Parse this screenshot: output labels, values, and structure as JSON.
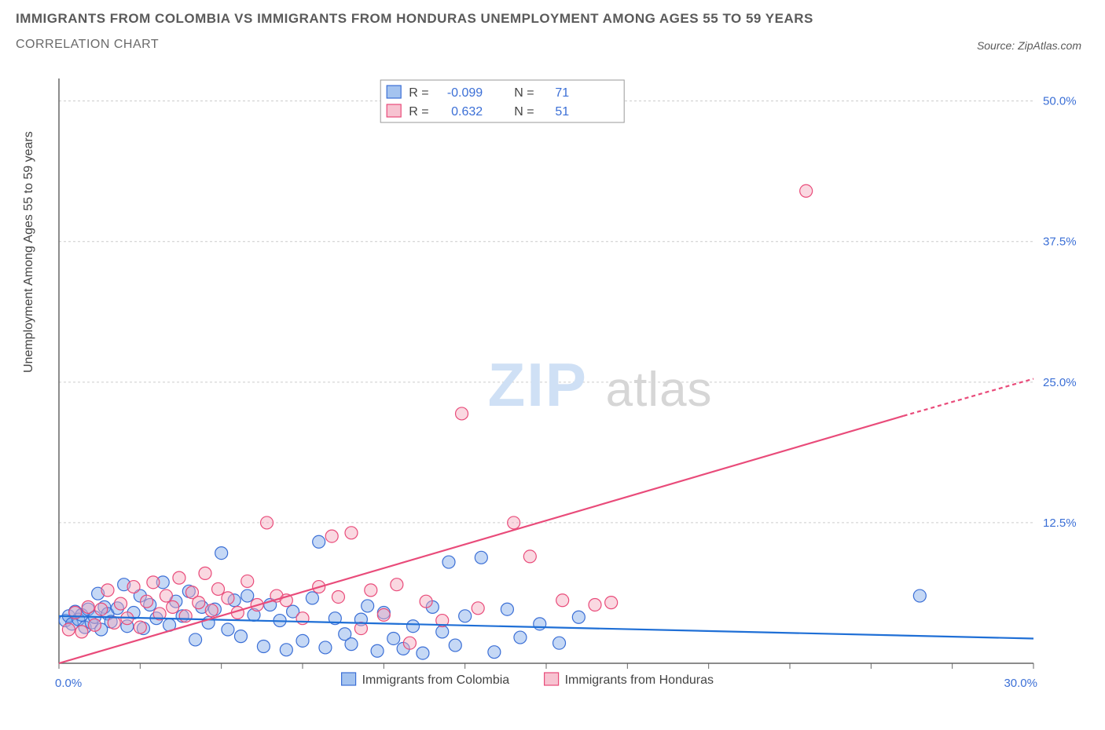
{
  "header": {
    "title_line1": "IMMIGRANTS FROM COLOMBIA VS IMMIGRANTS FROM HONDURAS UNEMPLOYMENT AMONG AGES 55 TO 59 YEARS",
    "title_line2": "CORRELATION CHART",
    "source": "Source: ZipAtlas.com"
  },
  "watermark": {
    "zip": "ZIP",
    "atlas": "atlas"
  },
  "chart": {
    "type": "scatter-correlation",
    "background_color": "#ffffff",
    "grid_color": "#cccccc",
    "axis_color": "#666666",
    "label_color": "#3b6fd6",
    "y_axis_title": "Unemployment Among Ages 55 to 59 years",
    "xlim": [
      0,
      30
    ],
    "ylim": [
      0,
      52
    ],
    "x_tick_start": 0.0,
    "x_tick_end_label": "30.0%",
    "x_tick_start_label": "0.0%",
    "y_ticks": [
      12.5,
      25.0,
      37.5,
      50.0
    ],
    "y_tick_labels": [
      "12.5%",
      "25.0%",
      "37.5%",
      "50.0%"
    ],
    "x_minor_tick_step": 2.5,
    "marker_radius": 8,
    "marker_stroke_width": 1.2,
    "series": [
      {
        "name": "Immigrants from Colombia",
        "fill": "#7ea9e8",
        "fill_opacity": 0.45,
        "stroke": "#3b6fd6",
        "r_value": "-0.099",
        "n_value": "71",
        "trend": {
          "x1": 0,
          "y1": 4.2,
          "x2": 30,
          "y2": 2.2,
          "color": "#1f6fd6",
          "width": 2.2
        },
        "points": [
          [
            0.2,
            3.8
          ],
          [
            0.3,
            4.2
          ],
          [
            0.4,
            3.5
          ],
          [
            0.5,
            4.6
          ],
          [
            0.6,
            3.9
          ],
          [
            0.7,
            4.3
          ],
          [
            0.8,
            3.2
          ],
          [
            0.9,
            4.8
          ],
          [
            1.0,
            3.6
          ],
          [
            1.1,
            4.1
          ],
          [
            1.2,
            6.2
          ],
          [
            1.3,
            3.0
          ],
          [
            1.4,
            5.0
          ],
          [
            1.5,
            4.4
          ],
          [
            1.6,
            3.7
          ],
          [
            1.8,
            4.9
          ],
          [
            2.0,
            7.0
          ],
          [
            2.1,
            3.3
          ],
          [
            2.3,
            4.5
          ],
          [
            2.5,
            6.0
          ],
          [
            2.6,
            3.1
          ],
          [
            2.8,
            5.2
          ],
          [
            3.0,
            4.0
          ],
          [
            3.2,
            7.2
          ],
          [
            3.4,
            3.4
          ],
          [
            3.6,
            5.5
          ],
          [
            3.8,
            4.2
          ],
          [
            4.0,
            6.4
          ],
          [
            4.2,
            2.1
          ],
          [
            4.4,
            5.0
          ],
          [
            4.6,
            3.6
          ],
          [
            4.8,
            4.8
          ],
          [
            5.0,
            9.8
          ],
          [
            5.2,
            3.0
          ],
          [
            5.4,
            5.6
          ],
          [
            5.6,
            2.4
          ],
          [
            5.8,
            6.0
          ],
          [
            6.0,
            4.3
          ],
          [
            6.3,
            1.5
          ],
          [
            6.5,
            5.2
          ],
          [
            6.8,
            3.8
          ],
          [
            7.0,
            1.2
          ],
          [
            7.2,
            4.6
          ],
          [
            7.5,
            2.0
          ],
          [
            7.8,
            5.8
          ],
          [
            8.0,
            10.8
          ],
          [
            8.2,
            1.4
          ],
          [
            8.5,
            4.0
          ],
          [
            8.8,
            2.6
          ],
          [
            9.0,
            1.7
          ],
          [
            9.3,
            3.9
          ],
          [
            9.5,
            5.1
          ],
          [
            9.8,
            1.1
          ],
          [
            10.0,
            4.5
          ],
          [
            10.3,
            2.2
          ],
          [
            10.6,
            1.3
          ],
          [
            10.9,
            3.3
          ],
          [
            11.2,
            0.9
          ],
          [
            11.5,
            5.0
          ],
          [
            11.8,
            2.8
          ],
          [
            12.0,
            9.0
          ],
          [
            12.2,
            1.6
          ],
          [
            12.5,
            4.2
          ],
          [
            13.0,
            9.4
          ],
          [
            13.4,
            1.0
          ],
          [
            13.8,
            4.8
          ],
          [
            14.2,
            2.3
          ],
          [
            14.8,
            3.5
          ],
          [
            15.4,
            1.8
          ],
          [
            16.0,
            4.1
          ],
          [
            26.5,
            6.0
          ]
        ]
      },
      {
        "name": "Immigrants from Honduras",
        "fill": "#f3a9bd",
        "fill_opacity": 0.45,
        "stroke": "#e94b7a",
        "r_value": "0.632",
        "n_value": "51",
        "trend": {
          "x1": 0,
          "y1": 0.0,
          "x2": 26,
          "y2": 22.0,
          "x3": 30,
          "y3": 25.3,
          "color": "#e94b7a",
          "width": 2.2
        },
        "points": [
          [
            0.3,
            3.0
          ],
          [
            0.5,
            4.5
          ],
          [
            0.7,
            2.8
          ],
          [
            0.9,
            5.0
          ],
          [
            1.1,
            3.4
          ],
          [
            1.3,
            4.8
          ],
          [
            1.5,
            6.5
          ],
          [
            1.7,
            3.6
          ],
          [
            1.9,
            5.3
          ],
          [
            2.1,
            4.0
          ],
          [
            2.3,
            6.8
          ],
          [
            2.5,
            3.2
          ],
          [
            2.7,
            5.5
          ],
          [
            2.9,
            7.2
          ],
          [
            3.1,
            4.4
          ],
          [
            3.3,
            6.0
          ],
          [
            3.5,
            5.0
          ],
          [
            3.7,
            7.6
          ],
          [
            3.9,
            4.2
          ],
          [
            4.1,
            6.3
          ],
          [
            4.3,
            5.4
          ],
          [
            4.5,
            8.0
          ],
          [
            4.7,
            4.7
          ],
          [
            4.9,
            6.6
          ],
          [
            5.2,
            5.8
          ],
          [
            5.5,
            4.5
          ],
          [
            5.8,
            7.3
          ],
          [
            6.1,
            5.2
          ],
          [
            6.4,
            12.5
          ],
          [
            6.7,
            6.0
          ],
          [
            7.0,
            5.6
          ],
          [
            7.5,
            4.0
          ],
          [
            8.0,
            6.8
          ],
          [
            8.4,
            11.3
          ],
          [
            8.6,
            5.9
          ],
          [
            9.0,
            11.6
          ],
          [
            9.3,
            3.1
          ],
          [
            9.6,
            6.5
          ],
          [
            10.0,
            4.3
          ],
          [
            10.4,
            7.0
          ],
          [
            10.8,
            1.8
          ],
          [
            11.3,
            5.5
          ],
          [
            11.8,
            3.8
          ],
          [
            12.4,
            22.2
          ],
          [
            12.9,
            4.9
          ],
          [
            14.0,
            12.5
          ],
          [
            14.5,
            9.5
          ],
          [
            15.5,
            5.6
          ],
          [
            16.5,
            5.2
          ],
          [
            17.0,
            5.4
          ],
          [
            23.0,
            42.0
          ]
        ]
      }
    ],
    "bottom_legend": [
      {
        "label": "Immigrants from Colombia",
        "fill": "#7ea9e8",
        "stroke": "#3b6fd6"
      },
      {
        "label": "Immigrants from Honduras",
        "fill": "#f3a9bd",
        "stroke": "#e94b7a"
      }
    ],
    "corr_legend": {
      "r_label": "R =",
      "n_label": "N ="
    }
  }
}
